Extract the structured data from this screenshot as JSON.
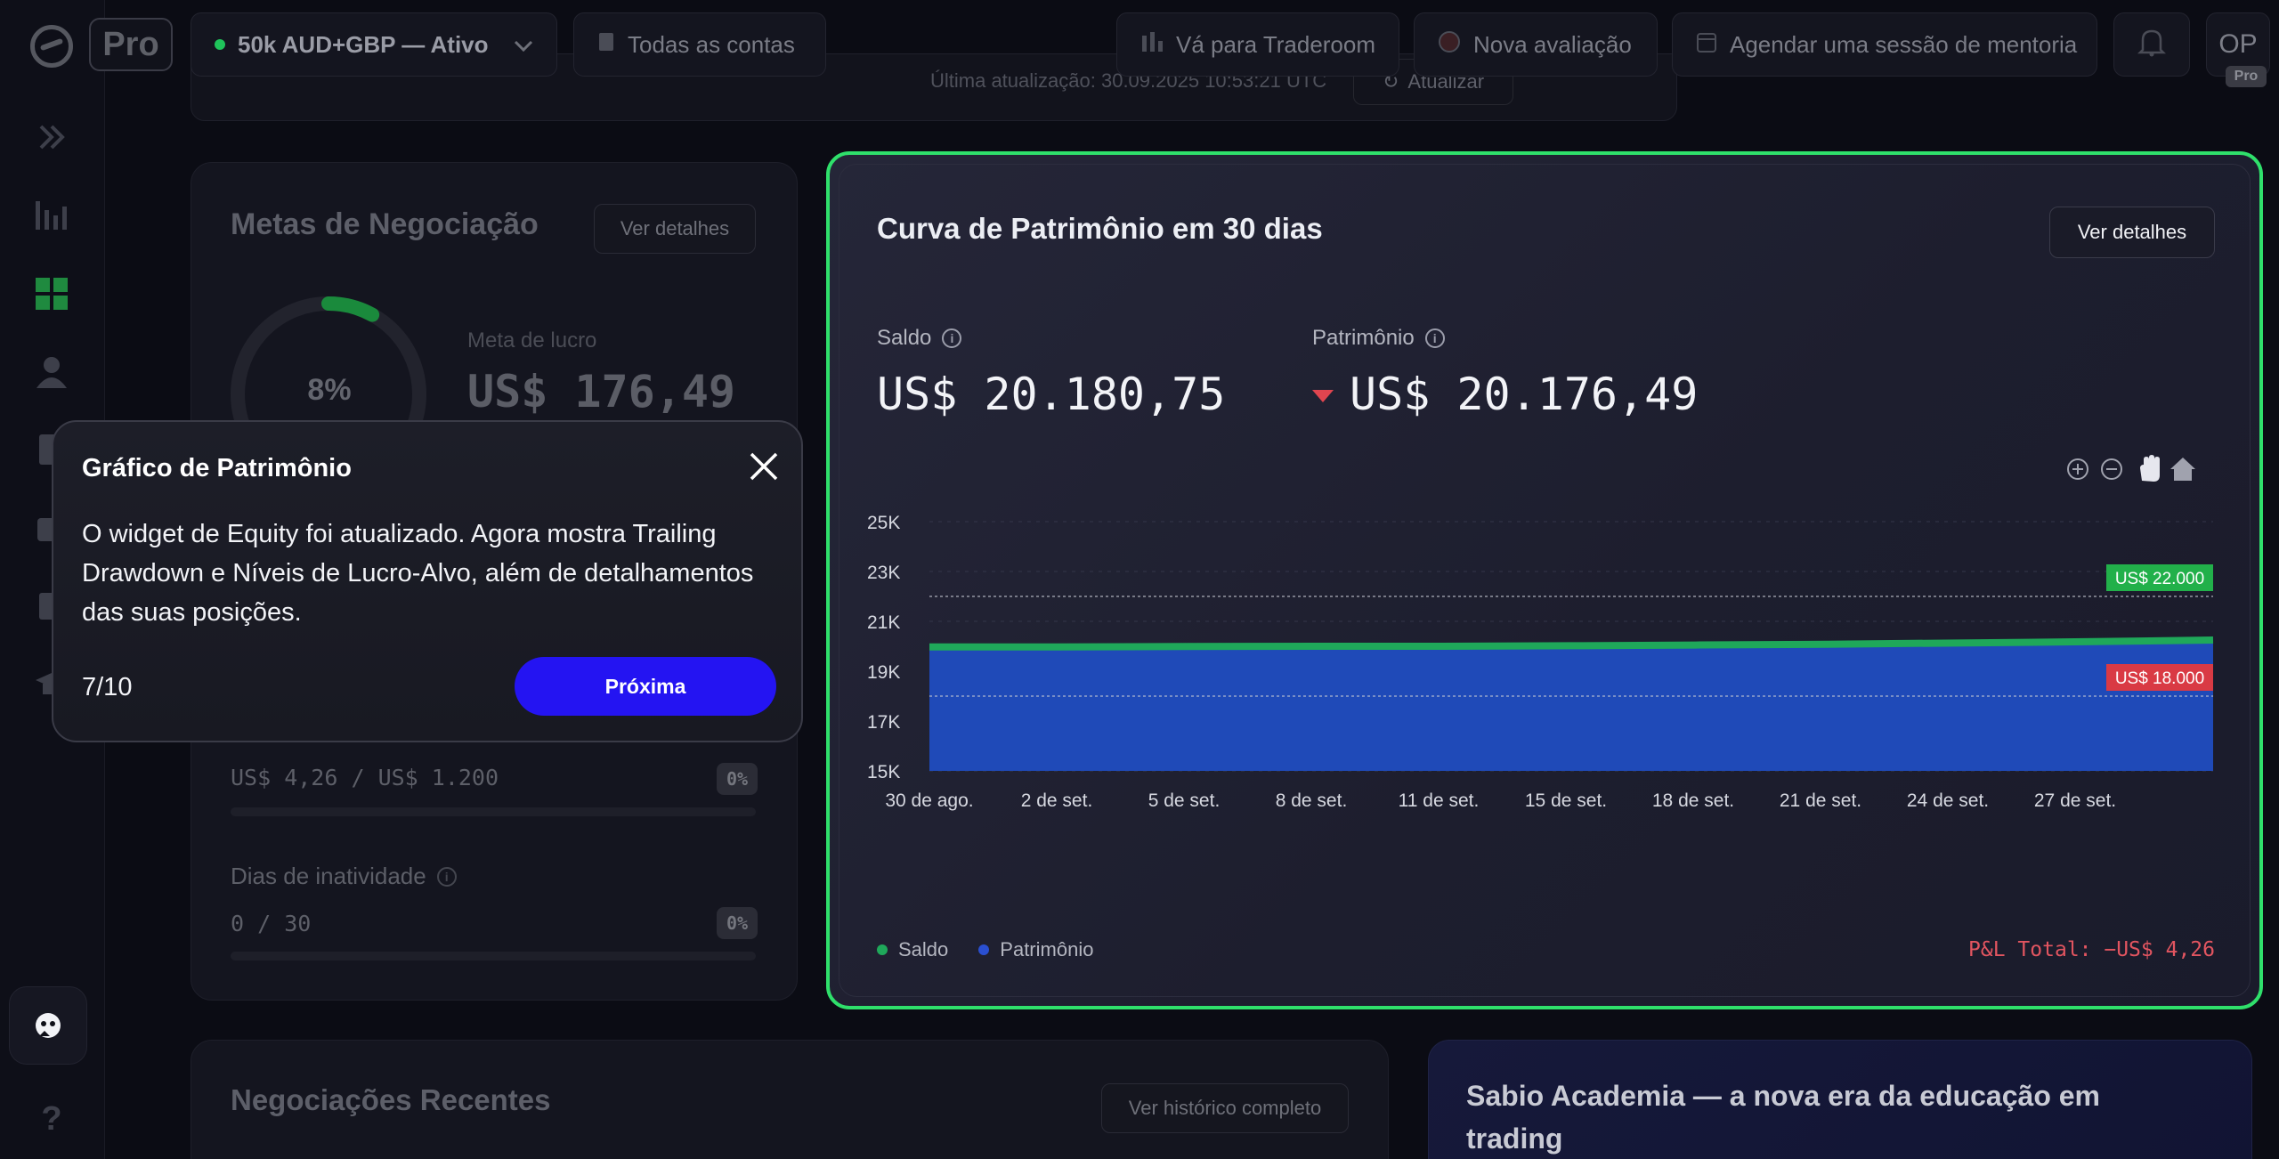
{
  "header": {
    "pro_label": "Pro",
    "account_label": "50k AUD+GBP — Ativo",
    "all_accounts": "Todas as contas",
    "traderoom": "Vá para Traderoom",
    "new_evaluation": "Nova avaliação",
    "mentoring": "Agendar uma sessão de mentoria",
    "avatar_initials": "OP",
    "avatar_badge": "Pro",
    "last_update": "Última atualização: 30.09.2025 10:53:21 UTC",
    "refresh": "Atualizar"
  },
  "goals": {
    "title": "Metas de Negociação",
    "details": "Ver detalhes",
    "progress_pct": "8%",
    "progress_fraction": 0.08,
    "profit_label": "Meta de lucro",
    "profit_value": "US$ 176,49",
    "loss_value": "US$ 4,26 / US$ 1.200",
    "loss_pct": "0%",
    "inactivity_label": "Dias de inatividade",
    "inactivity_value": "0 / 30",
    "inactivity_pct": "0%"
  },
  "tour": {
    "title": "Gráfico de Patrimônio",
    "body": "O widget de Equity foi atualizado. Agora mostra Trailing Drawdown e Níveis de Lucro-Alvo, além de detalhamentos das suas posições.",
    "step": "7/10",
    "next": "Próxima"
  },
  "equity": {
    "title": "Curva de Patrimônio em 30 dias",
    "details": "Ver detalhes",
    "balance_label": "Saldo",
    "balance_value": "US$ 20.180,75",
    "equity_label": "Patrimônio",
    "equity_value": "US$ 20.176,49",
    "legend_balance": "Saldo",
    "legend_equity": "Patrimônio",
    "pnl": "P&L Total: −US$ 4,26"
  },
  "chart_data": {
    "type": "area",
    "y_ticks": [
      "25K",
      "23K",
      "21K",
      "19K",
      "17K",
      "15K"
    ],
    "ylim": [
      15000,
      25000
    ],
    "x_ticks": [
      "30 de ago.",
      "2 de set.",
      "5 de set.",
      "8 de set.",
      "11 de set.",
      "15 de set.",
      "18 de set.",
      "21 de set.",
      "24 de set.",
      "27 de set."
    ],
    "series": [
      {
        "name": "Saldo",
        "color": "#1fa85a",
        "values": [
          19900,
          19900,
          19920,
          19930,
          19930,
          19950,
          19980,
          20010,
          20060,
          20110,
          20180
        ]
      },
      {
        "name": "Patrimônio",
        "color": "#1f4ab8",
        "values": [
          19880,
          19880,
          19900,
          19910,
          19910,
          19930,
          19960,
          19990,
          20040,
          20090,
          20176
        ]
      }
    ],
    "levels": [
      {
        "label": "US$ 22.000",
        "value": 22000,
        "color": "#22b04a"
      },
      {
        "label": "US$ 18.000",
        "value": 18000,
        "color": "#d93a44"
      }
    ]
  },
  "recent": {
    "title": "Negociações Recentes",
    "history": "Ver histórico completo"
  },
  "academy": {
    "title": "Sabio Academia — a nova era da educação em trading"
  }
}
